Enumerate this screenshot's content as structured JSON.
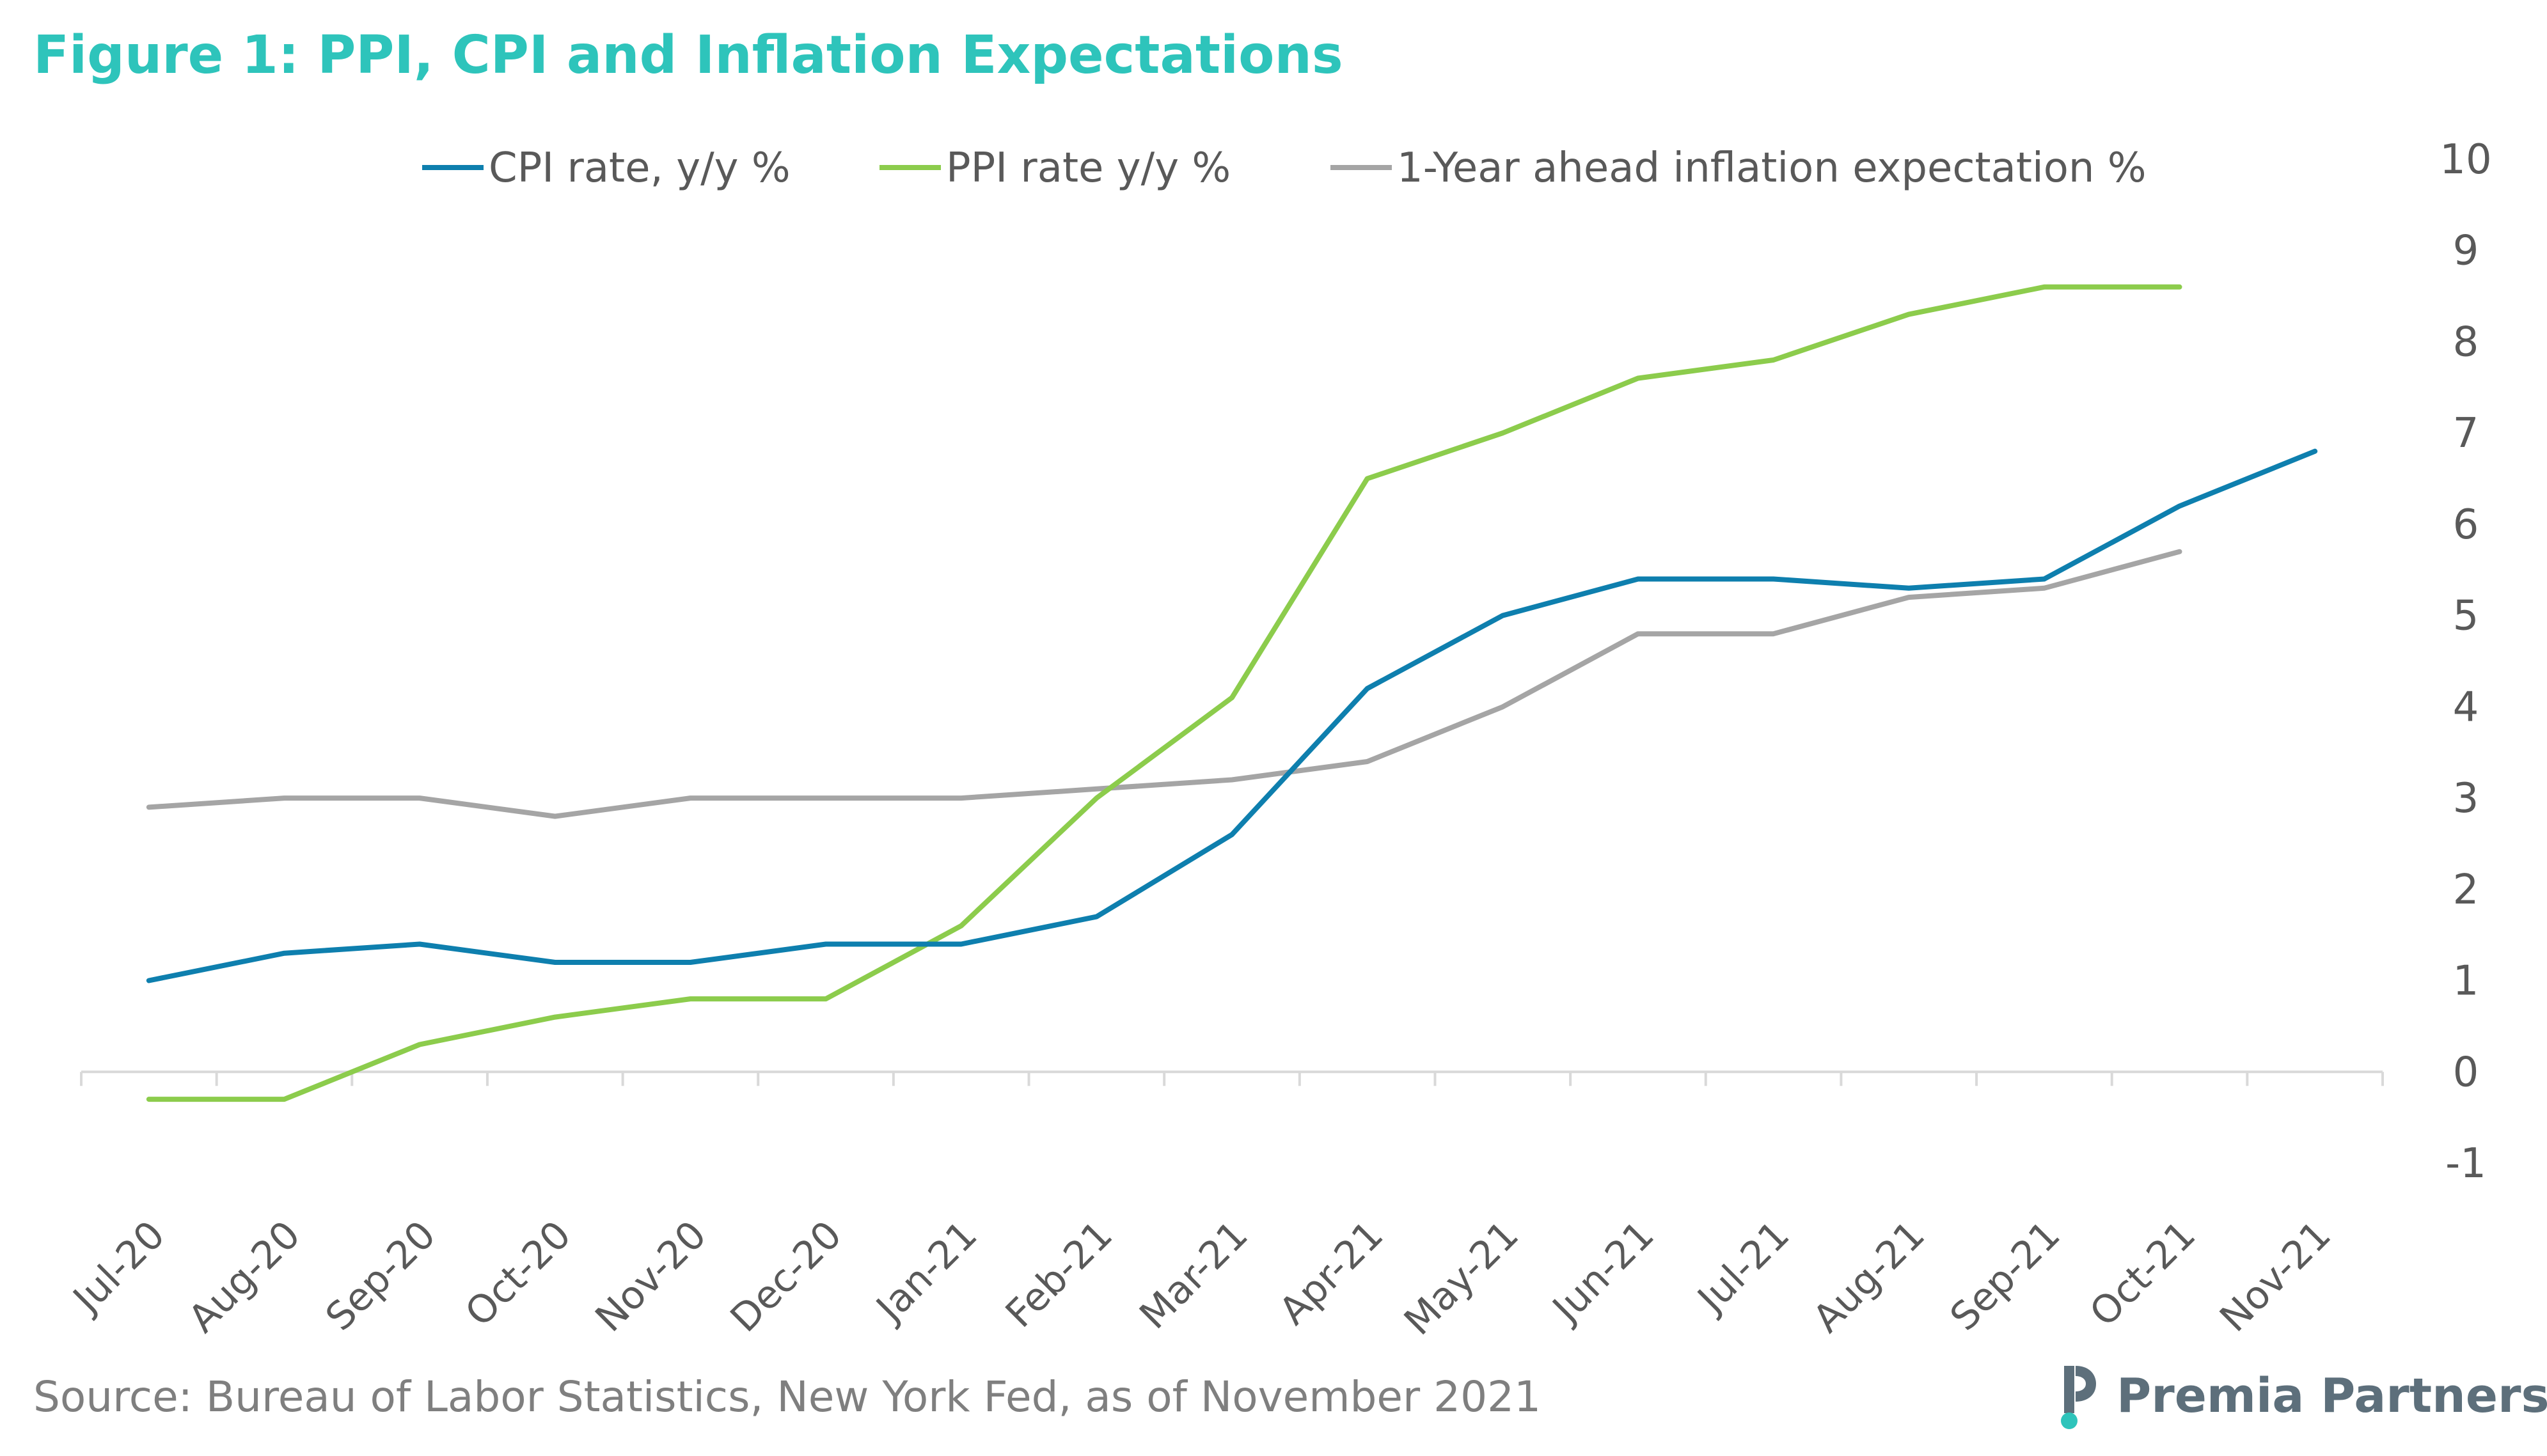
{
  "title": "Figure 1: PPI, CPI and Inflation Expectations",
  "source": "Source: Bureau of Labor Statistics, New York Fed, as of November 2021",
  "brand": {
    "name": "Premia Partners",
    "color": "#5d6f7b",
    "accent": "#2ec4bb",
    "icon": "premia-partners-logo-icon"
  },
  "colors": {
    "title": "#2ec4bb",
    "axis": "#d9d9d9",
    "tick_text": "#595959",
    "source_text": "#7f7f7f"
  },
  "chart_data": {
    "type": "line",
    "title": "Figure 1: PPI, CPI and Inflation Expectations",
    "categories": [
      "Jul-20",
      "Aug-20",
      "Sep-20",
      "Oct-20",
      "Nov-20",
      "Dec-20",
      "Jan-21",
      "Feb-21",
      "Mar-21",
      "Apr-21",
      "May-21",
      "Jun-21",
      "Jul-21",
      "Aug-21",
      "Sep-21",
      "Oct-21",
      "Nov-21"
    ],
    "series": [
      {
        "name": "CPI rate, y/y %",
        "color": "#0e7fae",
        "values": [
          1.0,
          1.3,
          1.4,
          1.2,
          1.2,
          1.4,
          1.4,
          1.7,
          2.6,
          4.2,
          5.0,
          5.4,
          5.4,
          5.3,
          5.4,
          6.2,
          6.8
        ]
      },
      {
        "name": "PPI  rate y/y %",
        "color": "#8ccc4c",
        "values": [
          -0.3,
          -0.3,
          0.3,
          0.6,
          0.8,
          0.8,
          1.6,
          3.0,
          4.1,
          6.5,
          7.0,
          7.6,
          7.8,
          8.3,
          8.6,
          8.6,
          null
        ]
      },
      {
        "name": "1-Year ahead inflation expectation %",
        "color": "#a5a5a5",
        "values": [
          2.9,
          3.0,
          3.0,
          2.8,
          3.0,
          3.0,
          3.0,
          3.1,
          3.2,
          3.4,
          4.0,
          4.8,
          4.8,
          5.2,
          5.3,
          5.7,
          null
        ]
      }
    ],
    "y_ticks": [
      10,
      9,
      8,
      7,
      6,
      5,
      4,
      3,
      2,
      1,
      0,
      -1
    ],
    "ylim": [
      -1,
      10
    ],
    "y_axis_side": "right",
    "grid": false,
    "legend_position": "top"
  }
}
